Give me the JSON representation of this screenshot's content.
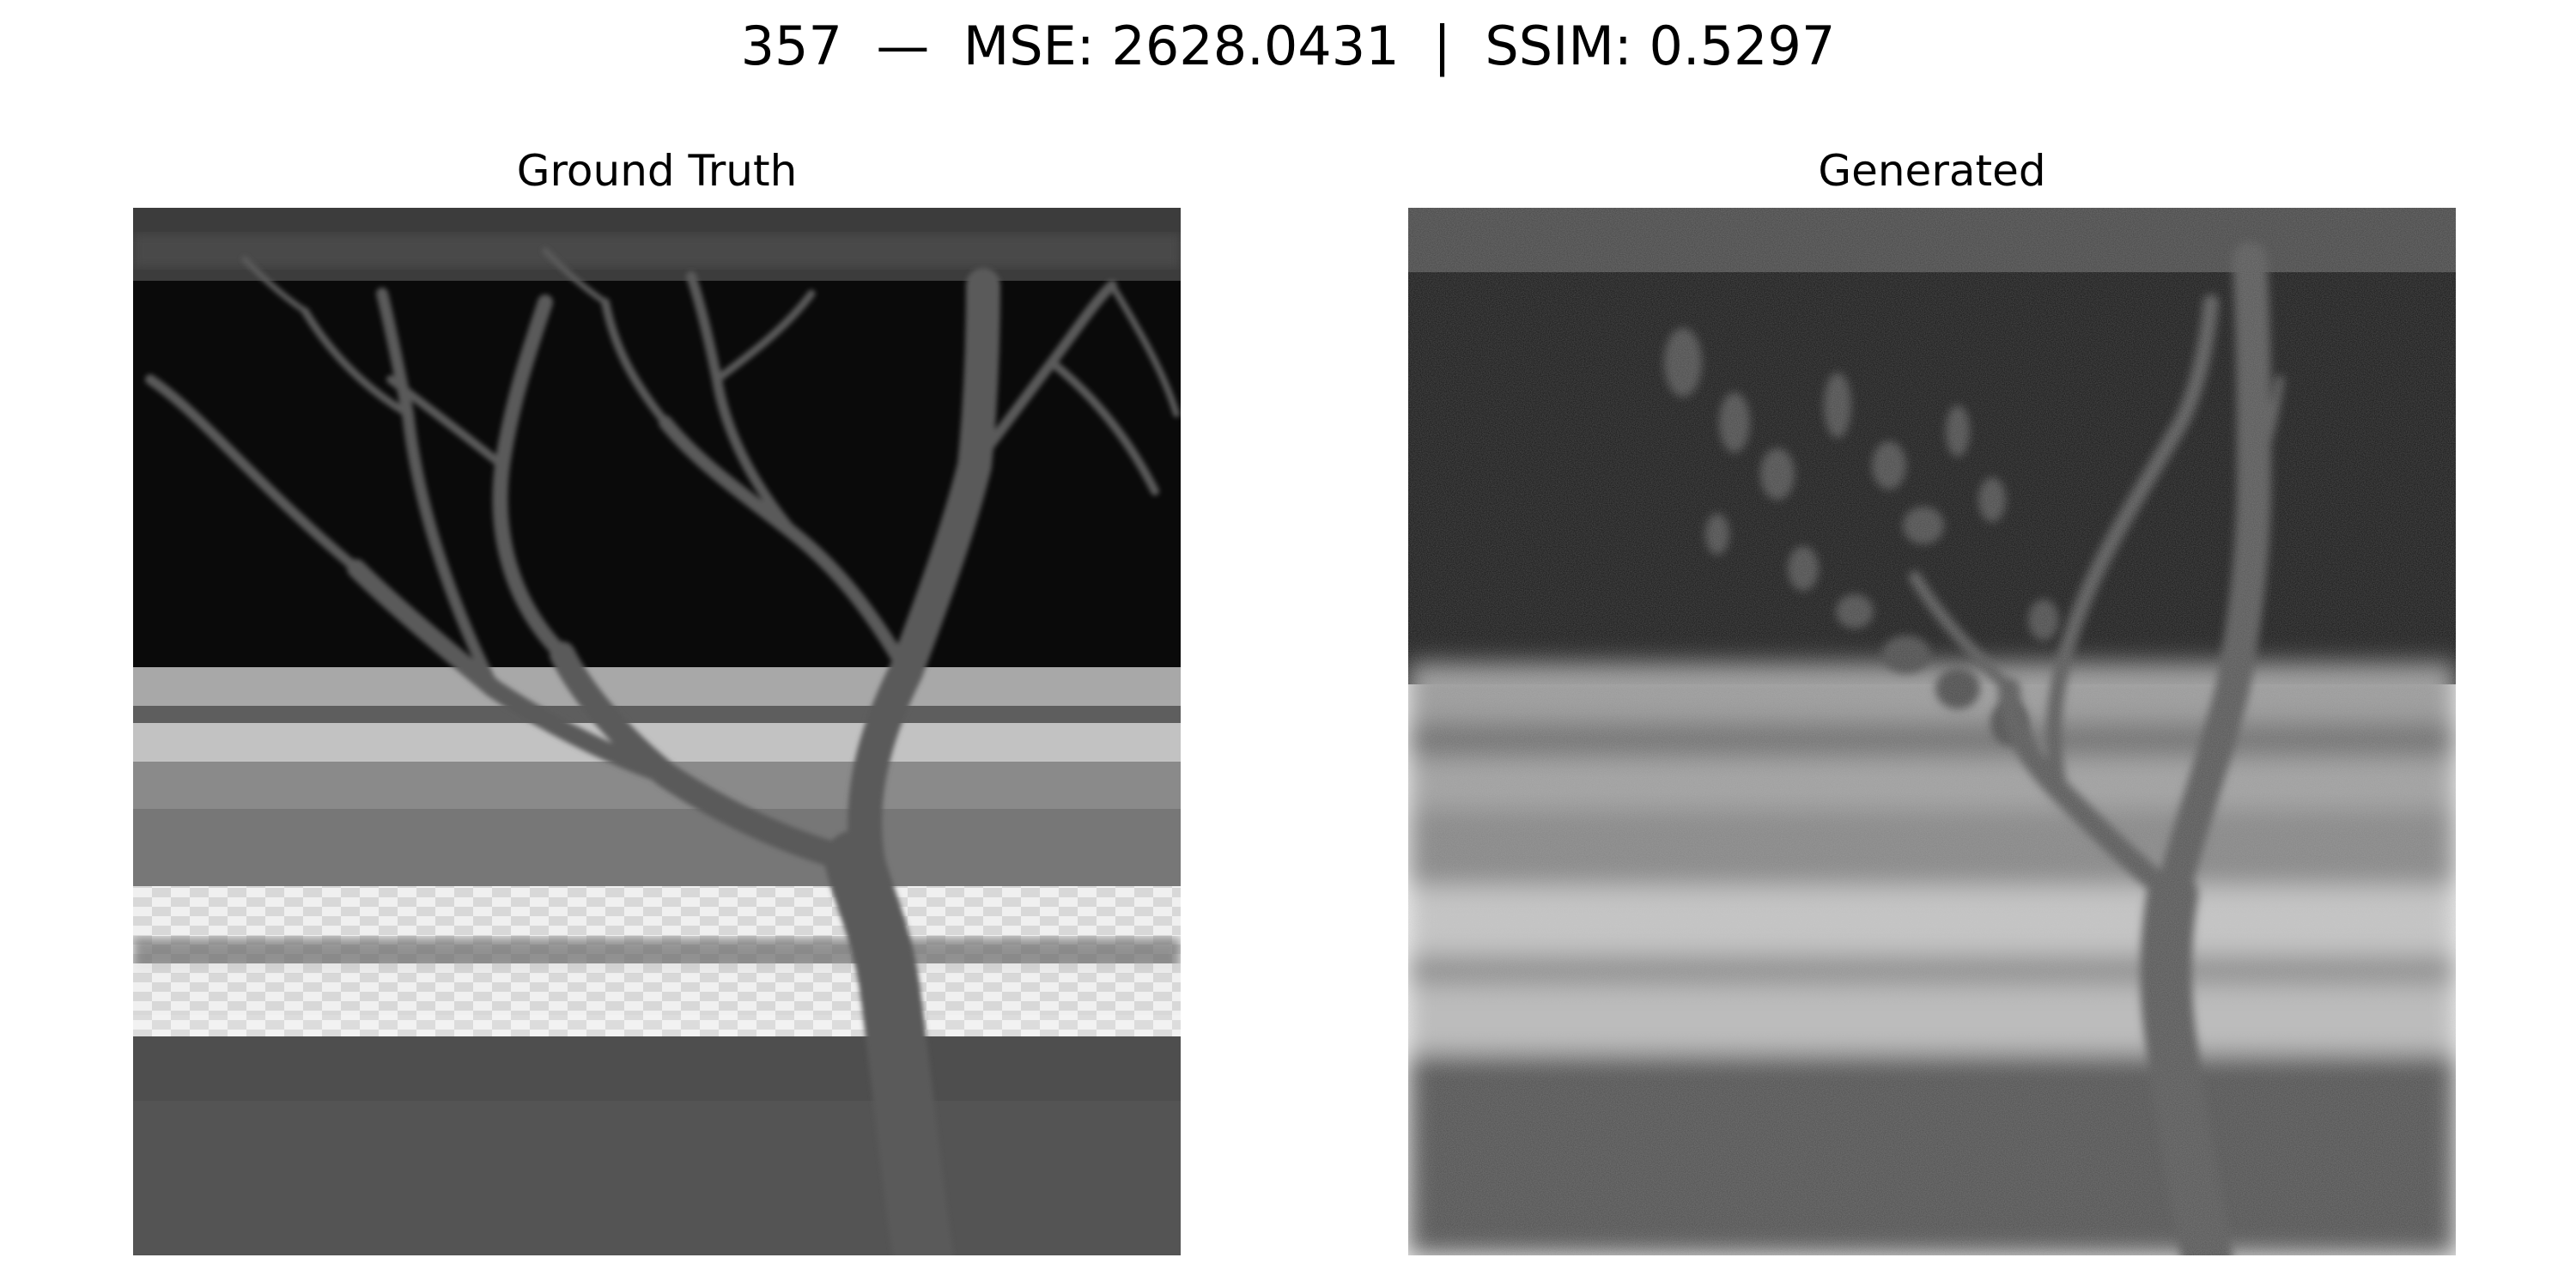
{
  "figure": {
    "title": "357  —  MSE: 2628.0431  |  SSIM: 0.5297"
  },
  "panels": [
    {
      "title": "Ground Truth"
    },
    {
      "title": "Generated"
    }
  ]
}
